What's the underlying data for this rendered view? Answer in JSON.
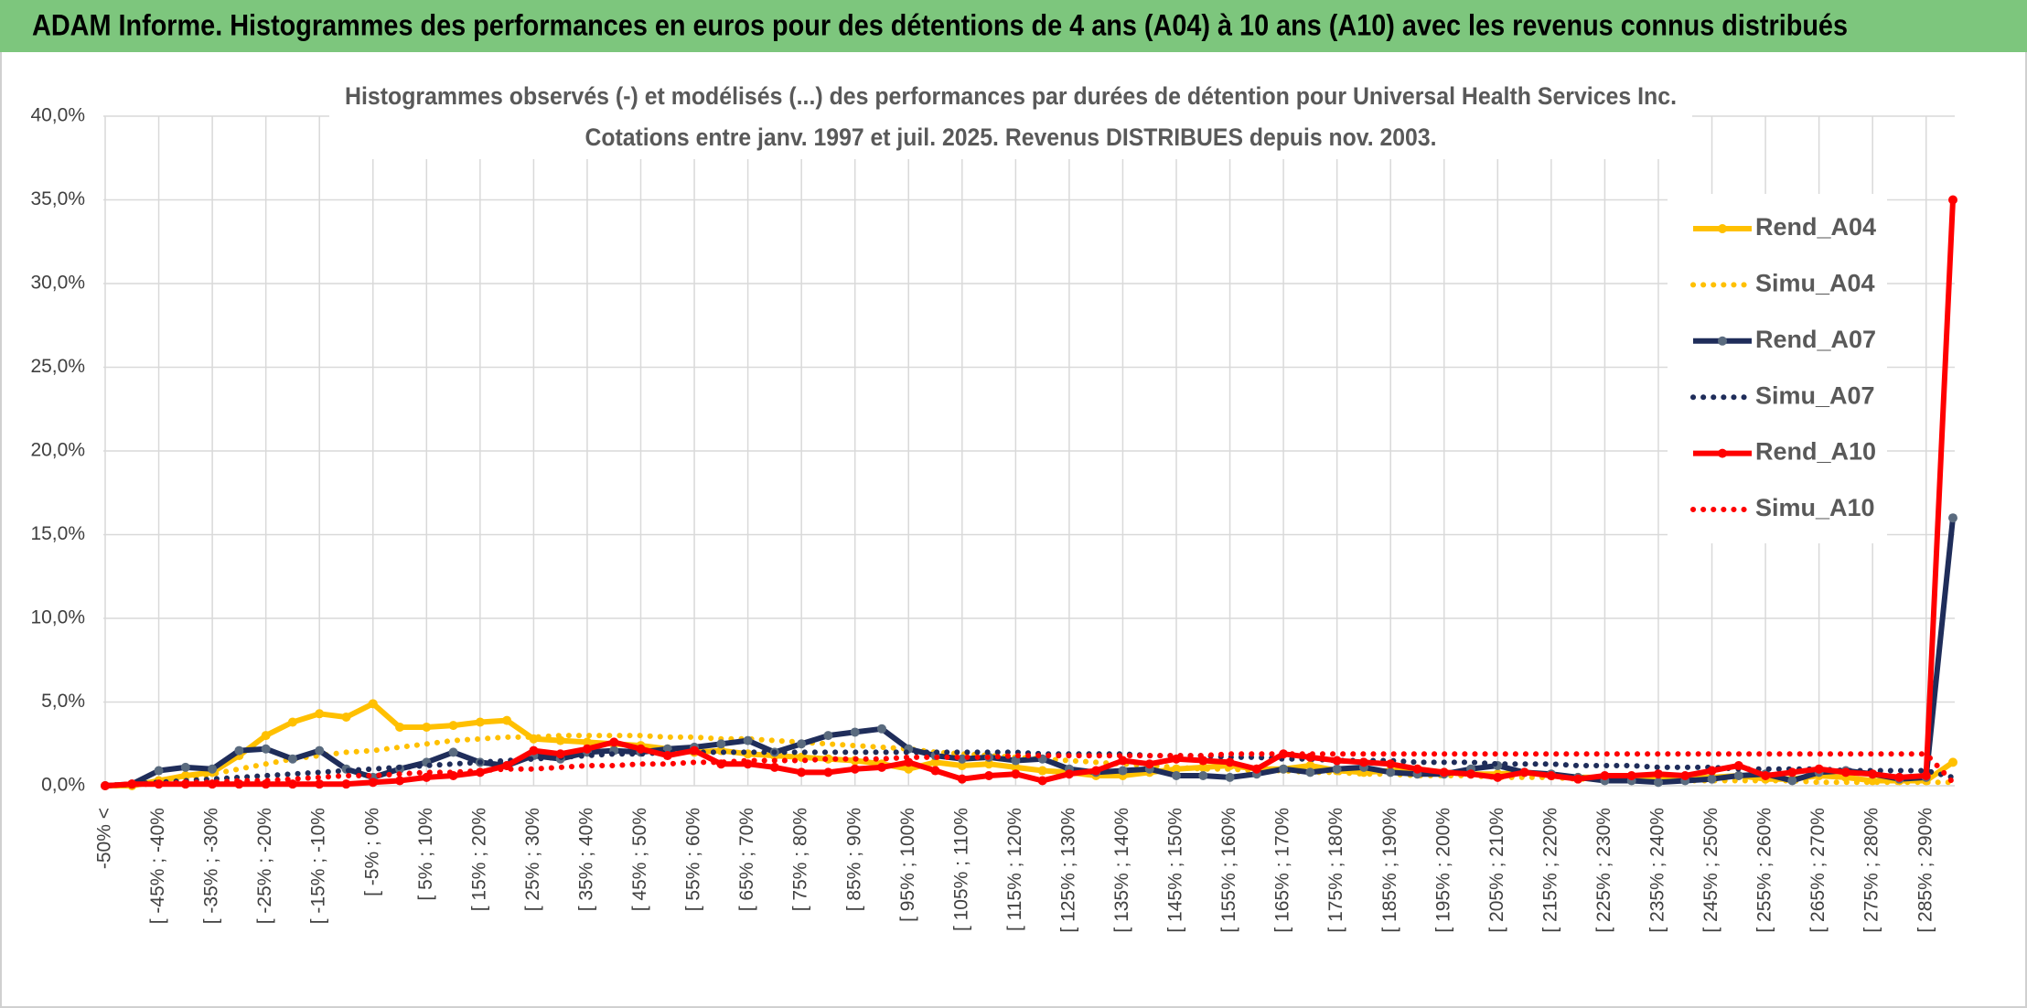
{
  "chart_data": {
    "type": "line",
    "header": "ADAM Informe. Histogrammes des performances en euros pour des détentions de 4 ans (A04) à 10 ans (A10) avec les revenus connus distribués",
    "title": "Histogrammes observés (-) et modélisés (...) des performances par durées de détention pour Universal Health Services Inc.",
    "subtitle": "Cotations entre janv. 1997 et juil. 2025. Revenus DISTRIBUES depuis nov. 2003.",
    "categories": [
      "-50% <",
      null,
      "[ -45% ; -40%",
      null,
      "[ -35% ; -30%",
      null,
      "[ -25% ; -20%",
      null,
      "[ -15% ; -10%",
      null,
      "[ -5% ; 0%",
      null,
      "[ 5% ; 10%",
      null,
      "[ 15% ; 20%",
      null,
      "[ 25% ; 30%",
      null,
      "[ 35% ; 40%",
      null,
      "[ 45% ; 50%",
      null,
      "[ 55% ; 60%",
      null,
      "[ 65% ; 70%",
      null,
      "[ 75% ; 80%",
      null,
      "[ 85% ; 90%",
      null,
      "[ 95% ; 100%",
      null,
      "[ 105% ; 110%",
      null,
      "[ 115% ; 120%",
      null,
      "[ 125% ; 130%",
      null,
      "[ 135% ; 140%",
      null,
      "[ 145% ; 150%",
      null,
      "[ 155% ; 160%",
      null,
      "[ 165% ; 170%",
      null,
      "[ 175% ; 180%",
      null,
      "[ 185% ; 190%",
      null,
      "[ 195% ; 200%",
      null,
      "[ 205% ; 210%",
      null,
      "[ 215% ; 220%",
      null,
      "[ 225% ; 230%",
      null,
      "[ 235% ; 240%",
      null,
      "[ 245% ; 250%",
      null,
      "[ 255% ; 260%",
      null,
      "[ 265% ; 270%",
      null,
      "[ 275% ; 280%",
      null,
      "[ 285% ; 290%",
      null
    ],
    "series": [
      {
        "name": "Rend_A04",
        "color": "#ffc000",
        "style": "solid",
        "markers": true,
        "values": [
          0,
          0,
          0.3,
          0.6,
          0.8,
          1.8,
          3.0,
          3.8,
          4.3,
          4.1,
          4.9,
          3.5,
          3.5,
          3.6,
          3.8,
          3.9,
          2.8,
          2.7,
          2.6,
          2.5,
          2.4,
          2.2,
          2.0,
          2.1,
          1.9,
          1.8,
          1.7,
          1.6,
          1.5,
          1.3,
          1.0,
          1.4,
          1.2,
          1.3,
          1.1,
          0.9,
          0.8,
          0.6,
          0.6,
          0.8,
          1.0,
          1.1,
          1.2,
          1.0,
          1.0,
          1.2,
          0.9,
          0.8,
          0.9,
          1.0,
          0.8,
          0.7,
          0.7,
          0.8,
          0.6,
          0.5,
          0.5,
          0.4,
          0.4,
          0.5,
          0.5,
          0.6,
          0.4,
          0.4,
          0.6,
          0.5,
          0.3,
          0.3,
          0.3,
          1.4
        ]
      },
      {
        "name": "Simu_A04",
        "color": "#ffc000",
        "style": "dotted",
        "markers": false,
        "values": [
          0,
          0.1,
          0.2,
          0.4,
          0.7,
          1.0,
          1.3,
          1.6,
          1.8,
          2.0,
          2.1,
          2.3,
          2.5,
          2.7,
          2.8,
          2.9,
          2.9,
          3.0,
          3.0,
          3.0,
          3.0,
          2.9,
          2.9,
          2.8,
          2.8,
          2.7,
          2.6,
          2.5,
          2.4,
          2.3,
          2.2,
          2.0,
          1.9,
          1.8,
          1.7,
          1.6,
          1.5,
          1.4,
          1.3,
          1.2,
          1.1,
          1.0,
          1.0,
          0.9,
          0.9,
          0.8,
          0.8,
          0.7,
          0.7,
          0.6,
          0.6,
          0.6,
          0.5,
          0.5,
          0.5,
          0.4,
          0.4,
          0.4,
          0.4,
          0.3,
          0.3,
          0.3,
          0.3,
          0.3,
          0.2,
          0.2,
          0.2,
          0.2,
          0.2,
          0.2
        ]
      },
      {
        "name": "Rend_A07",
        "color": "#1f2d5a",
        "marker_color": "#5a6b7f",
        "style": "solid",
        "markers": true,
        "values": [
          0,
          0.1,
          0.9,
          1.1,
          1.0,
          2.1,
          2.2,
          1.6,
          2.1,
          1.0,
          0.5,
          1.0,
          1.4,
          2.0,
          1.4,
          1.2,
          1.8,
          1.6,
          2.0,
          2.1,
          2.0,
          2.2,
          2.3,
          2.5,
          2.7,
          2.0,
          2.5,
          3.0,
          3.2,
          3.4,
          2.2,
          1.8,
          1.6,
          1.7,
          1.5,
          1.6,
          1.0,
          0.8,
          0.9,
          1.0,
          0.6,
          0.6,
          0.5,
          0.7,
          1.0,
          0.8,
          1.0,
          1.1,
          0.8,
          0.7,
          0.7,
          1.0,
          1.2,
          0.8,
          0.7,
          0.5,
          0.3,
          0.3,
          0.2,
          0.3,
          0.4,
          0.6,
          0.7,
          0.3,
          0.8,
          0.9,
          0.7,
          0.4,
          0.5,
          16.0
        ]
      },
      {
        "name": "Simu_A07",
        "color": "#1f2d5a",
        "style": "dotted",
        "markers": false,
        "values": [
          0,
          0.1,
          0.2,
          0.3,
          0.4,
          0.5,
          0.6,
          0.7,
          0.8,
          0.9,
          1.0,
          1.1,
          1.2,
          1.3,
          1.4,
          1.5,
          1.6,
          1.7,
          1.8,
          1.9,
          1.9,
          2.0,
          2.0,
          2.0,
          2.0,
          2.0,
          2.0,
          2.0,
          2.0,
          2.0,
          2.0,
          2.0,
          2.0,
          2.0,
          2.0,
          1.9,
          1.9,
          1.9,
          1.9,
          1.8,
          1.8,
          1.8,
          1.7,
          1.7,
          1.6,
          1.6,
          1.5,
          1.5,
          1.5,
          1.4,
          1.4,
          1.4,
          1.3,
          1.3,
          1.3,
          1.2,
          1.2,
          1.2,
          1.1,
          1.1,
          1.1,
          1.0,
          1.0,
          1.0,
          1.0,
          0.9,
          0.9,
          0.9,
          0.9,
          0.5
        ]
      },
      {
        "name": "Rend_A10",
        "color": "#ff0000",
        "style": "solid",
        "markers": true,
        "values": [
          0,
          0.1,
          0.1,
          0.1,
          0.1,
          0.1,
          0.1,
          0.1,
          0.1,
          0.1,
          0.2,
          0.3,
          0.5,
          0.6,
          0.8,
          1.2,
          2.1,
          1.9,
          2.2,
          2.6,
          2.2,
          1.8,
          2.1,
          1.3,
          1.3,
          1.1,
          0.8,
          0.8,
          1.0,
          1.1,
          1.4,
          0.9,
          0.4,
          0.6,
          0.7,
          0.3,
          0.7,
          0.9,
          1.5,
          1.3,
          1.6,
          1.5,
          1.4,
          1.0,
          1.9,
          1.7,
          1.5,
          1.4,
          1.3,
          1.0,
          0.8,
          0.7,
          0.5,
          0.8,
          0.6,
          0.4,
          0.6,
          0.6,
          0.7,
          0.6,
          0.9,
          1.2,
          0.6,
          0.8,
          1.0,
          0.8,
          0.7,
          0.5,
          0.6,
          35.0
        ]
      },
      {
        "name": "Simu_A10",
        "color": "#ff0000",
        "style": "dotted",
        "markers": false,
        "values": [
          0,
          0.1,
          0.1,
          0.2,
          0.2,
          0.3,
          0.3,
          0.4,
          0.5,
          0.6,
          0.6,
          0.7,
          0.8,
          0.8,
          0.9,
          1.0,
          1.0,
          1.1,
          1.2,
          1.2,
          1.3,
          1.3,
          1.4,
          1.4,
          1.5,
          1.5,
          1.5,
          1.6,
          1.6,
          1.6,
          1.7,
          1.7,
          1.7,
          1.7,
          1.8,
          1.8,
          1.8,
          1.8,
          1.8,
          1.8,
          1.8,
          1.8,
          1.9,
          1.9,
          1.9,
          1.9,
          1.9,
          1.9,
          1.9,
          1.9,
          1.9,
          1.9,
          1.9,
          1.9,
          1.9,
          1.9,
          1.9,
          1.9,
          1.9,
          1.9,
          1.9,
          1.9,
          1.9,
          1.9,
          1.9,
          1.9,
          1.9,
          1.9,
          1.9,
          0.2
        ]
      }
    ],
    "ylim": [
      0,
      40
    ],
    "yticks": [
      {
        "value": 0,
        "label": "0,0%"
      },
      {
        "value": 5,
        "label": "5,0%"
      },
      {
        "value": 10,
        "label": "10,0%"
      },
      {
        "value": 15,
        "label": "15,0%"
      },
      {
        "value": 20,
        "label": "20,0%"
      },
      {
        "value": 25,
        "label": "25,0%"
      },
      {
        "value": 30,
        "label": "30,0%"
      },
      {
        "value": 35,
        "label": "35,0%"
      },
      {
        "value": 40,
        "label": "40,0%"
      }
    ],
    "grid": true,
    "legend": "right",
    "header_color": "#7dc67d"
  }
}
